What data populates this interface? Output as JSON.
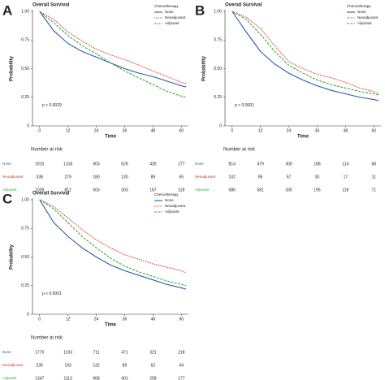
{
  "chart_data": [
    {
      "type": "line",
      "panel_label": "A",
      "title": "Overall Survival",
      "xlabel": "Time",
      "ylabel": "Probability",
      "legend_title": "Chemotherapy",
      "annotation": "p < 0.0029",
      "table_title": "Number at risk",
      "x": [
        0,
        6,
        12,
        18,
        24,
        30,
        36,
        42,
        48,
        54,
        60,
        62
      ],
      "xlim": [
        -3,
        63
      ],
      "xticks": [
        0,
        12,
        24,
        36,
        48,
        60
      ],
      "ylim": [
        0,
        1
      ],
      "yticks": [
        0,
        0.25,
        {
          "value": 0.5,
          "label": "0.50"
        },
        0.75,
        {
          "value": 1,
          "label": "1.00"
        }
      ],
      "series": [
        {
          "name": "None",
          "color": "#2b5aa6",
          "dash": "solid",
          "values": [
            1,
            0.83,
            0.72,
            0.65,
            0.6,
            0.55,
            0.5,
            0.46,
            0.43,
            0.39,
            0.35,
            0.34
          ],
          "at_risk": [
            1910,
            1318,
            903,
            628,
            426,
            277
          ]
        },
        {
          "name": "Neoadjuvant",
          "color": "#d6312b",
          "dash": "dotted",
          "values": [
            1,
            0.93,
            0.82,
            0.74,
            0.67,
            0.62,
            0.58,
            0.53,
            0.48,
            0.43,
            0.38,
            0.37
          ],
          "at_risk": [
            338,
            279,
            180,
            130,
            89,
            65
          ]
        },
        {
          "name": "Adjuvant",
          "color": "#3aa63a",
          "dash": "dashed",
          "values": [
            1,
            0.9,
            0.79,
            0.7,
            0.63,
            0.55,
            0.48,
            0.42,
            0.36,
            0.3,
            0.26,
            0.25
          ],
          "at_risk": [
            1039,
            812,
            503,
            303,
            187,
            118
          ]
        }
      ]
    },
    {
      "type": "line",
      "panel_label": "B",
      "title": "Overall Survival",
      "xlabel": "Time",
      "ylabel": "Probability",
      "legend_title": "Chemotherapy",
      "annotation": "p < 0.0001",
      "table_title": "Number at risk",
      "x": [
        0,
        6,
        12,
        18,
        24,
        30,
        36,
        42,
        48,
        54,
        60,
        62
      ],
      "xlim": [
        -3,
        63
      ],
      "xticks": [
        0,
        12,
        24,
        36,
        48,
        60
      ],
      "ylim": [
        0,
        1
      ],
      "yticks": [
        0,
        0.25,
        {
          "value": 0.5,
          "label": "0.50"
        },
        0.75,
        {
          "value": 1,
          "label": "1.00"
        }
      ],
      "series": [
        {
          "name": "None",
          "color": "#2b5aa6",
          "dash": "solid",
          "values": [
            1,
            0.82,
            0.65,
            0.54,
            0.46,
            0.4,
            0.35,
            0.31,
            0.28,
            0.25,
            0.23,
            0.22
          ],
          "at_risk": [
            814,
            479,
            300,
            188,
            114,
            68
          ]
        },
        {
          "name": "Neoadjuvant",
          "color": "#d6312b",
          "dash": "dotted",
          "values": [
            1,
            0.95,
            0.85,
            0.7,
            0.56,
            0.5,
            0.45,
            0.42,
            0.38,
            0.33,
            0.3,
            0.28
          ],
          "at_risk": [
            102,
            85,
            57,
            30,
            17,
            11
          ]
        },
        {
          "name": "Adjuvant",
          "color": "#3aa63a",
          "dash": "dashed",
          "values": [
            1,
            0.93,
            0.8,
            0.65,
            0.53,
            0.46,
            0.4,
            0.36,
            0.33,
            0.3,
            0.28,
            0.27
          ],
          "at_risk": [
            686,
            581,
            335,
            195,
            118,
            71
          ]
        }
      ]
    },
    {
      "type": "line",
      "panel_label": "C",
      "title": "Overall Survival",
      "xlabel": "Time",
      "ylabel": "Probability",
      "legend_title": "Chemotherapy",
      "annotation": "p < 0.0001",
      "table_title": "Number at risk",
      "x": [
        0,
        6,
        12,
        18,
        24,
        30,
        36,
        42,
        48,
        54,
        60,
        62
      ],
      "xlim": [
        -3,
        63
      ],
      "xticks": [
        0,
        12,
        24,
        36,
        48,
        60
      ],
      "ylim": [
        0,
        1
      ],
      "yticks": [
        0,
        0.25,
        {
          "value": 0.5,
          "label": "0.50"
        },
        0.75,
        {
          "value": 1,
          "label": "1.00"
        }
      ],
      "series": [
        {
          "name": "None",
          "color": "#2b5aa6",
          "dash": "solid",
          "values": [
            1,
            0.8,
            0.68,
            0.58,
            0.5,
            0.43,
            0.38,
            0.34,
            0.3,
            0.26,
            0.23,
            0.22
          ],
          "at_risk": [
            1770,
            1103,
            711,
            471,
            321,
            218
          ]
        },
        {
          "name": "Neoadjuvant",
          "color": "#d6312b",
          "dash": "dotted",
          "values": [
            1,
            0.94,
            0.84,
            0.74,
            0.65,
            0.58,
            0.52,
            0.48,
            0.44,
            0.41,
            0.38,
            0.36
          ],
          "at_risk": [
            235,
            193,
            132,
            89,
            62,
            44
          ]
        },
        {
          "name": "Adjuvant",
          "color": "#3aa63a",
          "dash": "dashed",
          "values": [
            1,
            0.92,
            0.8,
            0.68,
            0.58,
            0.49,
            0.42,
            0.37,
            0.33,
            0.29,
            0.26,
            0.25
          ],
          "at_risk": [
            1347,
            1113,
            668,
            401,
            258,
            177
          ]
        }
      ]
    }
  ]
}
